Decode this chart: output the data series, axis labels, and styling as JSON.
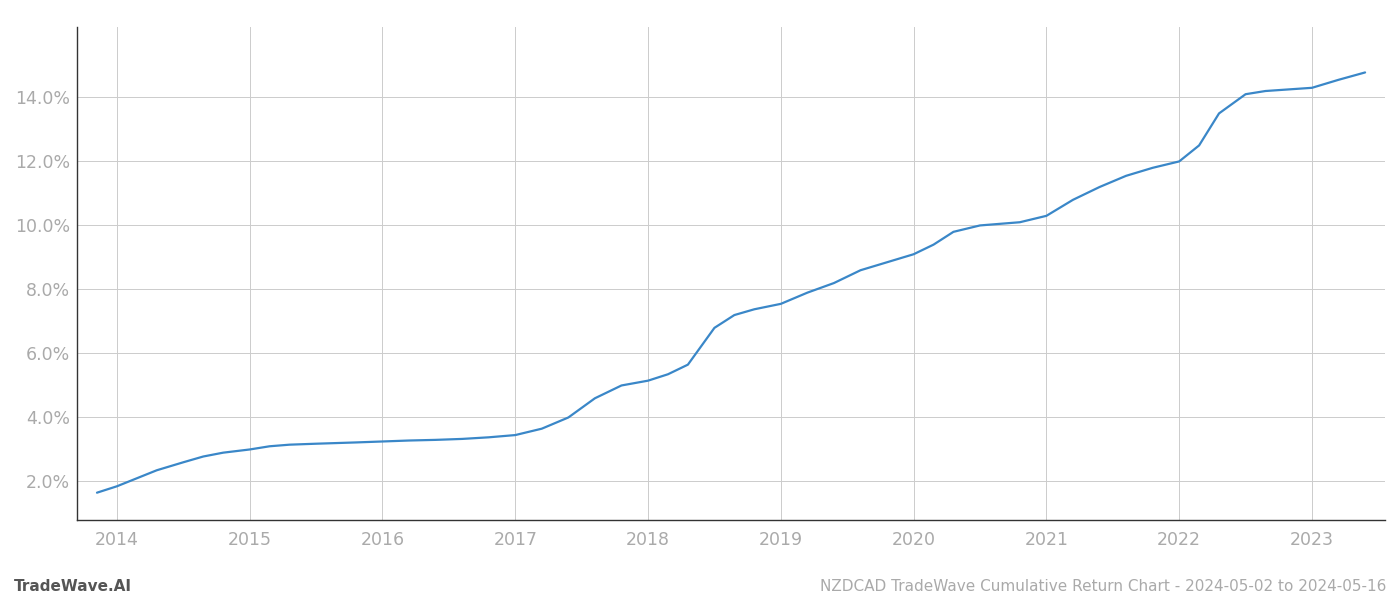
{
  "title": "NZDCAD TradeWave Cumulative Return Chart - 2024-05-02 to 2024-05-16",
  "footer_left": "TradeWave.AI",
  "line_color": "#3a87c8",
  "background_color": "#ffffff",
  "grid_color": "#cccccc",
  "x_years": [
    2014,
    2015,
    2016,
    2017,
    2018,
    2019,
    2020,
    2021,
    2022,
    2023
  ],
  "x_data": [
    2013.85,
    2014.0,
    2014.15,
    2014.3,
    2014.5,
    2014.65,
    2014.8,
    2015.0,
    2015.15,
    2015.3,
    2015.5,
    2015.65,
    2015.8,
    2016.0,
    2016.2,
    2016.4,
    2016.6,
    2016.8,
    2017.0,
    2017.2,
    2017.4,
    2017.6,
    2017.8,
    2018.0,
    2018.15,
    2018.3,
    2018.5,
    2018.65,
    2018.8,
    2019.0,
    2019.2,
    2019.4,
    2019.6,
    2019.8,
    2020.0,
    2020.15,
    2020.3,
    2020.5,
    2020.65,
    2020.8,
    2021.0,
    2021.2,
    2021.4,
    2021.6,
    2021.8,
    2022.0,
    2022.15,
    2022.3,
    2022.5,
    2022.65,
    2023.0,
    2023.2,
    2023.4
  ],
  "y_data": [
    1.65,
    1.85,
    2.1,
    2.35,
    2.6,
    2.78,
    2.9,
    3.0,
    3.1,
    3.15,
    3.18,
    3.2,
    3.22,
    3.25,
    3.28,
    3.3,
    3.33,
    3.38,
    3.45,
    3.65,
    4.0,
    4.6,
    5.0,
    5.15,
    5.35,
    5.65,
    6.8,
    7.2,
    7.38,
    7.55,
    7.9,
    8.2,
    8.6,
    8.85,
    9.1,
    9.4,
    9.8,
    10.0,
    10.05,
    10.1,
    10.3,
    10.8,
    11.2,
    11.55,
    11.8,
    12.0,
    12.5,
    13.5,
    14.1,
    14.2,
    14.3,
    14.55,
    14.78
  ],
  "ylim": [
    0.8,
    16.2
  ],
  "yticks": [
    2.0,
    4.0,
    6.0,
    8.0,
    10.0,
    12.0,
    14.0
  ],
  "xlim": [
    2013.7,
    2023.55
  ],
  "title_fontsize": 11,
  "footer_fontsize": 11,
  "tick_fontsize": 12.5,
  "tick_color": "#aaaaaa",
  "axis_color": "#333333",
  "line_width": 1.6,
  "left_spine_color": "#333333"
}
